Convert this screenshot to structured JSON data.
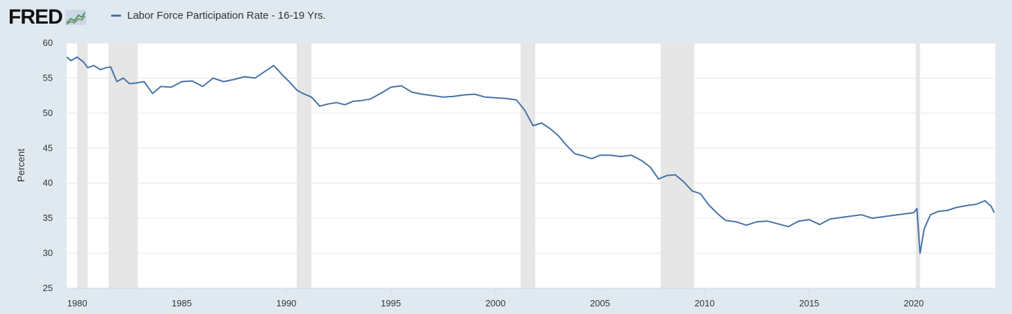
{
  "header": {
    "logo_text": "FRED",
    "logo_icon": "chart-line-icon",
    "legend_label": "Labor Force Participation Rate - 16-19 Yrs."
  },
  "chart_data": {
    "type": "line",
    "title": "",
    "xlabel": "",
    "ylabel": "Percent",
    "ylim": [
      25,
      60
    ],
    "yticks": [
      25,
      30,
      35,
      40,
      45,
      50,
      55,
      60
    ],
    "xlim": [
      1979.5,
      2023.9
    ],
    "xticks": [
      1980,
      1985,
      1990,
      1995,
      2000,
      2005,
      2010,
      2015,
      2020
    ],
    "grid": true,
    "line_color": "#4572a7",
    "recession_color": "#e6e6e6",
    "recessions": [
      [
        1980.0,
        1980.5
      ],
      [
        1981.5,
        1982.9
      ],
      [
        1990.5,
        1991.2
      ],
      [
        2001.2,
        2001.9
      ],
      [
        2007.9,
        2009.5
      ],
      [
        2020.1,
        2020.3
      ]
    ],
    "series": [
      {
        "name": "Labor Force Participation Rate - 16-19 Yrs.",
        "x": [
          1979.5,
          1979.7,
          1980.0,
          1980.3,
          1980.5,
          1980.8,
          1981.1,
          1981.4,
          1981.6,
          1981.9,
          1982.2,
          1982.5,
          1982.8,
          1983.2,
          1983.6,
          1984.0,
          1984.5,
          1985.0,
          1985.5,
          1986.0,
          1986.5,
          1987.0,
          1987.5,
          1988.0,
          1988.5,
          1989.0,
          1989.4,
          1989.8,
          1990.2,
          1990.5,
          1990.8,
          1991.2,
          1991.6,
          1992.0,
          1992.4,
          1992.8,
          1993.2,
          1993.6,
          1994.0,
          1994.5,
          1995.0,
          1995.5,
          1996.0,
          1996.5,
          1997.0,
          1997.5,
          1998.0,
          1998.5,
          1999.0,
          1999.5,
          2000.0,
          2000.5,
          2001.0,
          2001.4,
          2001.8,
          2002.2,
          2002.6,
          2003.0,
          2003.4,
          2003.8,
          2004.2,
          2004.6,
          2005.0,
          2005.5,
          2006.0,
          2006.5,
          2007.0,
          2007.4,
          2007.8,
          2008.2,
          2008.6,
          2009.0,
          2009.4,
          2009.8,
          2010.2,
          2010.6,
          2011.0,
          2011.5,
          2012.0,
          2012.5,
          2013.0,
          2013.5,
          2014.0,
          2014.5,
          2015.0,
          2015.5,
          2016.0,
          2016.5,
          2017.0,
          2017.5,
          2018.0,
          2018.5,
          2019.0,
          2019.5,
          2020.0,
          2020.15,
          2020.3,
          2020.5,
          2020.8,
          2021.2,
          2021.6,
          2022.0,
          2022.5,
          2023.0,
          2023.4,
          2023.7,
          2023.85
        ],
        "values": [
          58.0,
          57.5,
          58.0,
          57.3,
          56.5,
          56.8,
          56.2,
          56.5,
          56.6,
          54.5,
          55.0,
          54.2,
          54.3,
          54.5,
          52.8,
          53.8,
          53.7,
          54.5,
          54.6,
          53.8,
          55.0,
          54.5,
          54.8,
          55.2,
          55.0,
          56.0,
          56.8,
          55.5,
          54.3,
          53.3,
          52.8,
          52.3,
          51.0,
          51.3,
          51.5,
          51.2,
          51.7,
          51.8,
          52.0,
          52.8,
          53.7,
          53.9,
          53.0,
          52.7,
          52.5,
          52.3,
          52.4,
          52.6,
          52.7,
          52.3,
          52.2,
          52.1,
          51.9,
          50.4,
          48.2,
          48.6,
          47.8,
          46.8,
          45.4,
          44.2,
          43.9,
          43.5,
          44.0,
          44.0,
          43.8,
          44.0,
          43.2,
          42.3,
          40.6,
          41.1,
          41.2,
          40.2,
          38.9,
          38.5,
          36.9,
          35.7,
          34.7,
          34.5,
          34.0,
          34.5,
          34.6,
          34.2,
          33.8,
          34.6,
          34.8,
          34.1,
          34.9,
          35.1,
          35.3,
          35.5,
          35.0,
          35.2,
          35.4,
          35.6,
          35.8,
          36.4,
          30.0,
          33.5,
          35.5,
          36.0,
          36.1,
          36.5,
          36.8,
          37.0,
          37.5,
          36.7,
          35.8
        ]
      }
    ]
  }
}
